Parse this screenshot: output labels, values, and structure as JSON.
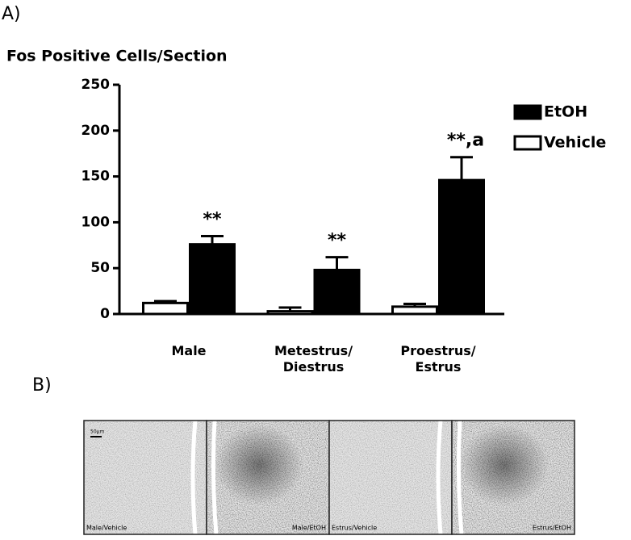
{
  "chart_data": {
    "type": "bar",
    "title": "Fos Positive Cells/Section",
    "panel_label": "A)",
    "categories": [
      "Male",
      "Metestrus/\nDiestrus",
      "Proestrus/\nEstrus"
    ],
    "series": [
      {
        "name": "Vehicle",
        "color": "#ffffff",
        "values": [
          12,
          3,
          8
        ],
        "errors": [
          2,
          4,
          3
        ]
      },
      {
        "name": "EtOH",
        "color": "#000000",
        "values": [
          76,
          48,
          146
        ],
        "errors": [
          9,
          14,
          25
        ],
        "annotations": [
          "**",
          "**",
          "**,a"
        ]
      }
    ],
    "legend_order": [
      "EtOH",
      "Vehicle"
    ],
    "ylim": [
      0,
      250
    ],
    "yticks": [
      0,
      50,
      100,
      150,
      200,
      250
    ],
    "grid": false,
    "legend": "upper right"
  },
  "figure_b": {
    "panel_label": "B)",
    "scale_bar": "50µm",
    "panels": [
      "Male/Vehicle",
      "Male/EtOH",
      "Estrus/Vehicle",
      "Estrus/EtOH"
    ]
  }
}
